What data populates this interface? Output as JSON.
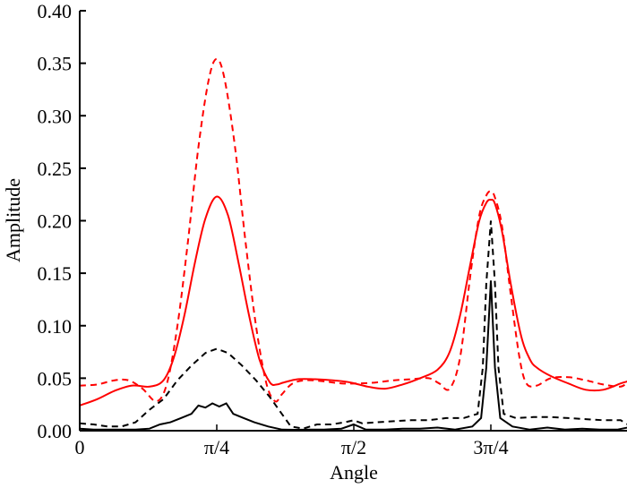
{
  "chart_data": {
    "type": "line",
    "title": "",
    "xlabel": "Angle",
    "ylabel": "Amplitude",
    "xlim": [
      0,
      3.1416
    ],
    "ylim": [
      0,
      0.4
    ],
    "grid": false,
    "legend": null,
    "x_ticks": [
      {
        "value": 0,
        "label": "0"
      },
      {
        "value": 0.7854,
        "label": "π/4"
      },
      {
        "value": 1.5708,
        "label": "π/2"
      },
      {
        "value": 2.3562,
        "label": "3π/4"
      }
    ],
    "y_ticks": [
      {
        "value": 0.0,
        "label": "0.00"
      },
      {
        "value": 0.05,
        "label": "0.05"
      },
      {
        "value": 0.1,
        "label": "0.10"
      },
      {
        "value": 0.15,
        "label": "0.15"
      },
      {
        "value": 0.2,
        "label": "0.20"
      },
      {
        "value": 0.25,
        "label": "0.25"
      },
      {
        "value": 0.3,
        "label": "0.30"
      },
      {
        "value": 0.35,
        "label": "0.35"
      },
      {
        "value": 0.4,
        "label": "0.40"
      }
    ],
    "series": [
      {
        "name": "red-solid",
        "color": "#ff0000",
        "dash": "",
        "x": [
          0,
          0.1,
          0.2,
          0.3,
          0.4,
          0.48,
          0.54,
          0.6,
          0.66,
          0.72,
          0.7854,
          0.85,
          0.91,
          0.97,
          1.03,
          1.09,
          1.13,
          1.17,
          1.25,
          1.35,
          1.45,
          1.55,
          1.65,
          1.75,
          1.85,
          1.95,
          2.05,
          2.12,
          2.18,
          2.24,
          2.29,
          2.33,
          2.3562,
          2.38,
          2.42,
          2.47,
          2.53,
          2.58,
          2.62,
          2.7,
          2.8,
          2.9,
          3.0,
          3.1,
          3.14
        ],
        "y": [
          0.024,
          0.03,
          0.038,
          0.043,
          0.042,
          0.048,
          0.07,
          0.11,
          0.16,
          0.202,
          0.223,
          0.205,
          0.16,
          0.11,
          0.068,
          0.046,
          0.044,
          0.046,
          0.049,
          0.049,
          0.048,
          0.046,
          0.042,
          0.04,
          0.044,
          0.05,
          0.058,
          0.075,
          0.11,
          0.16,
          0.2,
          0.217,
          0.22,
          0.216,
          0.19,
          0.14,
          0.09,
          0.068,
          0.06,
          0.052,
          0.045,
          0.039,
          0.039,
          0.045,
          0.047
        ]
      },
      {
        "name": "red-dashed",
        "color": "#ff0000",
        "dash": "7,5",
        "x": [
          0,
          0.1,
          0.2,
          0.28,
          0.36,
          0.44,
          0.5,
          0.56,
          0.62,
          0.68,
          0.74,
          0.7854,
          0.83,
          0.89,
          0.95,
          1.01,
          1.07,
          1.12,
          1.16,
          1.22,
          1.3,
          1.4,
          1.5,
          1.6,
          1.7,
          1.8,
          1.9,
          2.0,
          2.06,
          2.12,
          2.18,
          2.24,
          2.29,
          2.33,
          2.3562,
          2.38,
          2.42,
          2.47,
          2.52,
          2.56,
          2.62,
          2.7,
          2.8,
          2.9,
          3.0,
          3.1,
          3.14
        ],
        "y": [
          0.043,
          0.044,
          0.048,
          0.048,
          0.04,
          0.028,
          0.045,
          0.1,
          0.18,
          0.27,
          0.335,
          0.354,
          0.335,
          0.27,
          0.18,
          0.1,
          0.045,
          0.028,
          0.035,
          0.045,
          0.048,
          0.047,
          0.045,
          0.045,
          0.046,
          0.048,
          0.049,
          0.05,
          0.045,
          0.04,
          0.07,
          0.15,
          0.205,
          0.224,
          0.228,
          0.222,
          0.195,
          0.13,
          0.07,
          0.045,
          0.043,
          0.05,
          0.051,
          0.048,
          0.044,
          0.042,
          0.047
        ]
      },
      {
        "name": "black-dashed",
        "color": "#000000",
        "dash": "7,5",
        "x": [
          0,
          0.08,
          0.16,
          0.24,
          0.32,
          0.4,
          0.48,
          0.56,
          0.64,
          0.72,
          0.7854,
          0.85,
          0.93,
          1.01,
          1.09,
          1.15,
          1.21,
          1.28,
          1.36,
          1.44,
          1.52,
          1.57,
          1.62,
          1.7,
          1.8,
          1.9,
          2.0,
          2.1,
          2.2,
          2.28,
          2.31,
          2.33,
          2.3562,
          2.38,
          2.4,
          2.43,
          2.5,
          2.6,
          2.7,
          2.8,
          2.9,
          3.0,
          3.1,
          3.14
        ],
        "y": [
          0.007,
          0.006,
          0.004,
          0.004,
          0.008,
          0.02,
          0.03,
          0.048,
          0.062,
          0.074,
          0.078,
          0.074,
          0.062,
          0.048,
          0.032,
          0.018,
          0.004,
          0.002,
          0.006,
          0.006,
          0.008,
          0.01,
          0.007,
          0.008,
          0.009,
          0.01,
          0.01,
          0.012,
          0.012,
          0.016,
          0.06,
          0.14,
          0.2,
          0.14,
          0.06,
          0.016,
          0.012,
          0.013,
          0.013,
          0.012,
          0.011,
          0.01,
          0.01,
          0.006
        ]
      },
      {
        "name": "black-solid",
        "color": "#000000",
        "dash": "",
        "x": [
          0,
          0.08,
          0.16,
          0.24,
          0.32,
          0.4,
          0.46,
          0.52,
          0.58,
          0.64,
          0.68,
          0.72,
          0.76,
          0.8,
          0.84,
          0.88,
          0.94,
          1.0,
          1.08,
          1.16,
          1.24,
          1.32,
          1.4,
          1.5,
          1.57,
          1.64,
          1.75,
          1.85,
          1.95,
          2.05,
          2.15,
          2.25,
          2.3,
          2.33,
          2.3562,
          2.38,
          2.41,
          2.48,
          2.58,
          2.68,
          2.78,
          2.88,
          2.98,
          3.08,
          3.14
        ],
        "y": [
          0.002,
          0.001,
          0.001,
          0.001,
          0.001,
          0.002,
          0.006,
          0.008,
          0.012,
          0.016,
          0.024,
          0.022,
          0.026,
          0.023,
          0.026,
          0.016,
          0.012,
          0.008,
          0.004,
          0.001,
          0.0,
          0.001,
          0.001,
          0.002,
          0.006,
          0.001,
          0.001,
          0.002,
          0.002,
          0.003,
          0.001,
          0.004,
          0.012,
          0.06,
          0.143,
          0.06,
          0.012,
          0.004,
          0.001,
          0.003,
          0.001,
          0.002,
          0.001,
          0.001,
          0.003
        ]
      }
    ]
  }
}
